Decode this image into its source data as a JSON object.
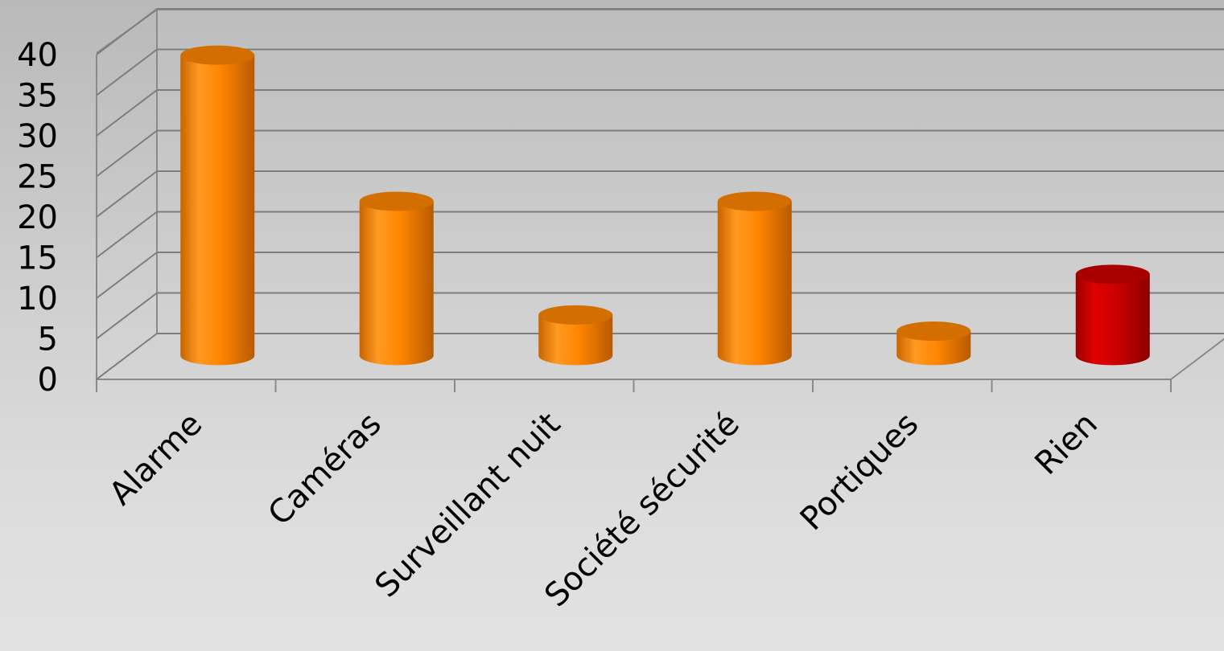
{
  "chart_data": {
    "type": "bar",
    "style": "3d-cylinder",
    "categories": [
      "Alarme",
      "Caméras",
      "Surveillant nuit",
      "Société sécurité",
      "Portiques",
      "Rien"
    ],
    "values": [
      37,
      19,
      5,
      19,
      3,
      10
    ],
    "bar_colors": [
      "#ff8a00",
      "#ff8a00",
      "#ff8a00",
      "#ff8a00",
      "#ff8a00",
      "#cc0000"
    ],
    "ylim": [
      0,
      40
    ],
    "yticks": [
      "0",
      "5",
      "10",
      "15",
      "20",
      "25",
      "30",
      "35",
      "40"
    ],
    "grid": true,
    "legend": "none",
    "title": "",
    "xlabel": "",
    "ylabel": ""
  }
}
